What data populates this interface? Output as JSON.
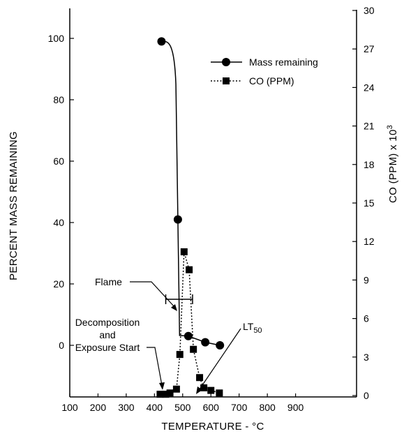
{
  "chart_data": {
    "type": "line",
    "xlabel": "TEMPERATURE - °C",
    "ylabel_left": "PERCENT MASS REMAINING",
    "ylabel_right_main": "CO (PPM) x 10",
    "ylabel_right_exp": "3",
    "xlim": [
      100,
      950
    ],
    "ylim_left": [
      -10,
      110
    ],
    "ylim_right": [
      0,
      30
    ],
    "x_ticks": [
      100,
      200,
      300,
      400,
      500,
      600,
      700,
      800,
      900
    ],
    "y_left_ticks": [
      0,
      20,
      40,
      60,
      80,
      100
    ],
    "y_right_ticks": [
      0,
      3,
      6,
      9,
      12,
      15,
      18,
      21,
      24,
      27,
      30
    ],
    "grid": false,
    "legend_position": "top-right",
    "series": [
      {
        "name": "Mass remaining",
        "axis": "left",
        "line_style": "solid",
        "marker": "circle",
        "markers": [
          {
            "x": 425,
            "y": 99
          },
          {
            "x": 483,
            "y": 41
          },
          {
            "x": 520,
            "y": 3
          },
          {
            "x": 580,
            "y": 1
          },
          {
            "x": 632,
            "y": 0
          }
        ]
      },
      {
        "name": "CO (PPM)",
        "axis": "right",
        "line_style": "dotted",
        "marker": "square",
        "markers": [
          {
            "x": 420,
            "y": 0.1
          },
          {
            "x": 440,
            "y": 0.1
          },
          {
            "x": 455,
            "y": 0.2
          },
          {
            "x": 478,
            "y": 0.5
          },
          {
            "x": 490,
            "y": 3.2
          },
          {
            "x": 505,
            "y": 11.2
          },
          {
            "x": 523,
            "y": 9.8
          },
          {
            "x": 538,
            "y": 3.6
          },
          {
            "x": 560,
            "y": 1.4
          },
          {
            "x": 575,
            "y": 0.6
          },
          {
            "x": 600,
            "y": 0.4
          },
          {
            "x": 630,
            "y": 0.2
          }
        ]
      }
    ],
    "flame_bar": {
      "x_start": 440,
      "x_end": 535,
      "y_left": 15
    },
    "annotations": {
      "flame": "Flame",
      "decomp_line1": "Decomposition",
      "decomp_line2": "and",
      "decomp_line3": "Exposure Start",
      "lt_main": "LT",
      "lt_sub": "50"
    }
  }
}
